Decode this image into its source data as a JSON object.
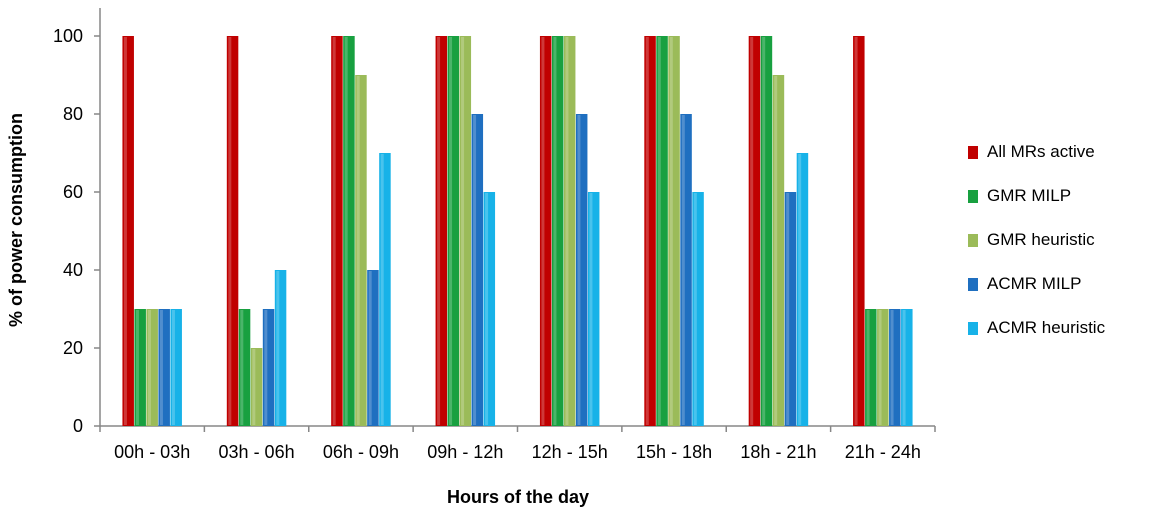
{
  "chart_data": {
    "type": "bar",
    "title": "",
    "xlabel": "Hours of the day",
    "ylabel": "% of power consumption",
    "ylim": [
      0,
      100
    ],
    "yticks": [
      0,
      20,
      40,
      60,
      80,
      100
    ],
    "grid": false,
    "legend_position": "right",
    "categories": [
      "00h - 03h",
      "03h - 06h",
      "06h - 09h",
      "09h - 12h",
      "12h - 15h",
      "15h - 18h",
      "18h - 21h",
      "21h - 24h"
    ],
    "series": [
      {
        "name": "All MRs active",
        "color": "#c00000",
        "values": [
          100,
          100,
          100,
          100,
          100,
          100,
          100,
          100
        ]
      },
      {
        "name": "GMR MILP",
        "color": "#18a040",
        "values": [
          30,
          30,
          100,
          100,
          100,
          100,
          100,
          30
        ]
      },
      {
        "name": "GMR heuristic",
        "color": "#9bbb59",
        "values": [
          30,
          20,
          90,
          100,
          100,
          100,
          90,
          30
        ]
      },
      {
        "name": "ACMR MILP",
        "color": "#1f6fc0",
        "values": [
          30,
          30,
          40,
          80,
          80,
          80,
          60,
          30
        ]
      },
      {
        "name": "ACMR heuristic",
        "color": "#17b2e8",
        "values": [
          30,
          40,
          70,
          60,
          60,
          60,
          70,
          30
        ]
      }
    ]
  }
}
